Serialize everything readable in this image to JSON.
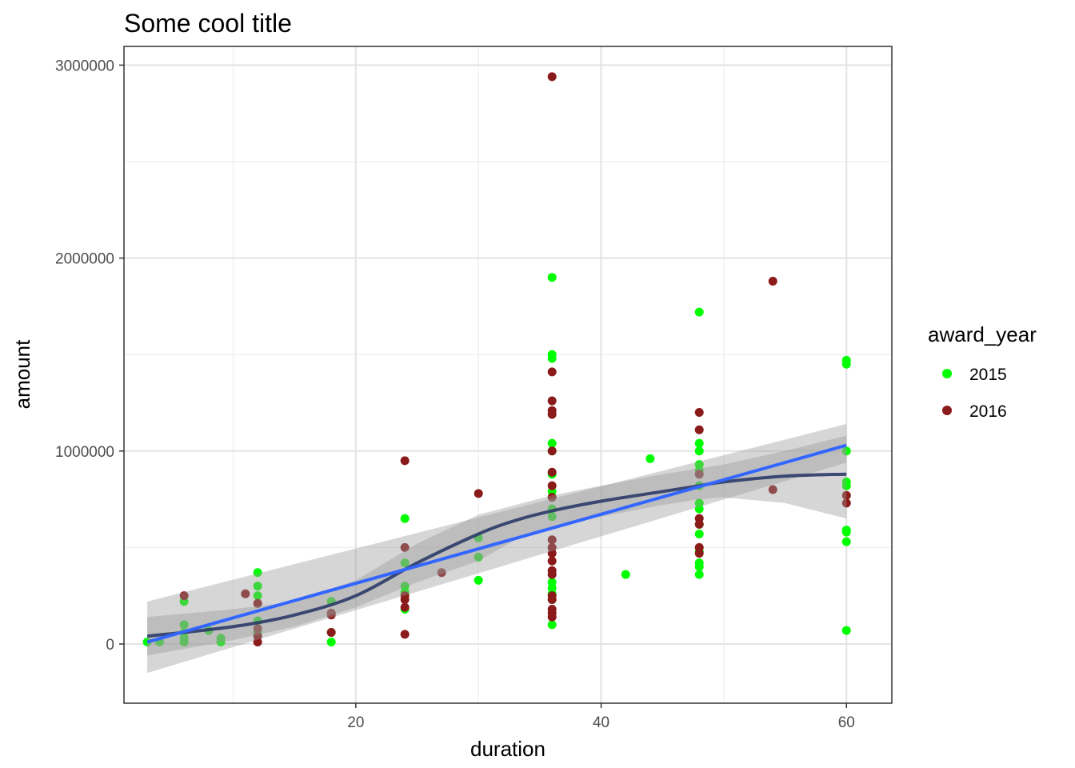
{
  "chart_data": {
    "type": "scatter",
    "title": "Some cool title",
    "xlabel": "duration",
    "ylabel": "amount",
    "xlim": [
      1.1,
      63.7
    ],
    "ylim": [
      -307000,
      3097000
    ],
    "x_ticks": [
      "20",
      "40",
      "60"
    ],
    "y_ticks": [
      "0",
      "1000000",
      "2000000",
      "3000000"
    ],
    "x_tick_values": [
      20,
      40,
      60
    ],
    "y_tick_values": [
      0,
      1000000,
      2000000,
      3000000
    ],
    "grid": true,
    "legend": {
      "title": "award_year",
      "position": "right"
    },
    "series": [
      {
        "name": "2015",
        "color": "#00ff00",
        "points": [
          [
            3,
            10000
          ],
          [
            4,
            10000
          ],
          [
            6,
            10000
          ],
          [
            6,
            30000
          ],
          [
            6,
            100000
          ],
          [
            6,
            220000
          ],
          [
            6,
            60000
          ],
          [
            8,
            70000
          ],
          [
            9,
            30000
          ],
          [
            9,
            10000
          ],
          [
            12,
            370000
          ],
          [
            12,
            300000
          ],
          [
            12,
            250000
          ],
          [
            12,
            120000
          ],
          [
            12,
            60000
          ],
          [
            18,
            10000
          ],
          [
            18,
            60000
          ],
          [
            18,
            220000
          ],
          [
            24,
            650000
          ],
          [
            24,
            420000
          ],
          [
            24,
            300000
          ],
          [
            24,
            270000
          ],
          [
            24,
            180000
          ],
          [
            30,
            550000
          ],
          [
            30,
            450000
          ],
          [
            30,
            330000
          ],
          [
            36,
            1900000
          ],
          [
            36,
            1500000
          ],
          [
            36,
            1480000
          ],
          [
            36,
            1040000
          ],
          [
            36,
            1000000
          ],
          [
            36,
            880000
          ],
          [
            36,
            790000
          ],
          [
            36,
            760000
          ],
          [
            36,
            700000
          ],
          [
            36,
            660000
          ],
          [
            36,
            320000
          ],
          [
            36,
            290000
          ],
          [
            36,
            260000
          ],
          [
            36,
            230000
          ],
          [
            36,
            100000
          ],
          [
            42,
            360000
          ],
          [
            44,
            960000
          ],
          [
            48,
            1720000
          ],
          [
            48,
            1040000
          ],
          [
            48,
            1000000
          ],
          [
            48,
            930000
          ],
          [
            48,
            900000
          ],
          [
            48,
            820000
          ],
          [
            48,
            730000
          ],
          [
            48,
            700000
          ],
          [
            48,
            620000
          ],
          [
            48,
            570000
          ],
          [
            48,
            480000
          ],
          [
            48,
            420000
          ],
          [
            48,
            400000
          ],
          [
            48,
            360000
          ],
          [
            60,
            1470000
          ],
          [
            60,
            1450000
          ],
          [
            60,
            1000000
          ],
          [
            60,
            840000
          ],
          [
            60,
            820000
          ],
          [
            60,
            590000
          ],
          [
            60,
            580000
          ],
          [
            60,
            530000
          ],
          [
            60,
            70000
          ]
        ]
      },
      {
        "name": "2016",
        "color": "#8b1a1a",
        "points": [
          [
            6,
            250000
          ],
          [
            11,
            260000
          ],
          [
            12,
            210000
          ],
          [
            12,
            80000
          ],
          [
            12,
            40000
          ],
          [
            12,
            10000
          ],
          [
            18,
            160000
          ],
          [
            18,
            150000
          ],
          [
            18,
            60000
          ],
          [
            24,
            950000
          ],
          [
            24,
            500000
          ],
          [
            24,
            250000
          ],
          [
            24,
            230000
          ],
          [
            24,
            190000
          ],
          [
            24,
            50000
          ],
          [
            27,
            370000
          ],
          [
            30,
            780000
          ],
          [
            36,
            2940000
          ],
          [
            36,
            1410000
          ],
          [
            36,
            1260000
          ],
          [
            36,
            1210000
          ],
          [
            36,
            1190000
          ],
          [
            36,
            1000000
          ],
          [
            36,
            890000
          ],
          [
            36,
            820000
          ],
          [
            36,
            760000
          ],
          [
            36,
            540000
          ],
          [
            36,
            500000
          ],
          [
            36,
            470000
          ],
          [
            36,
            430000
          ],
          [
            36,
            380000
          ],
          [
            36,
            360000
          ],
          [
            36,
            250000
          ],
          [
            36,
            230000
          ],
          [
            36,
            180000
          ],
          [
            36,
            160000
          ],
          [
            36,
            140000
          ],
          [
            48,
            1200000
          ],
          [
            48,
            1110000
          ],
          [
            48,
            880000
          ],
          [
            48,
            650000
          ],
          [
            48,
            620000
          ],
          [
            48,
            500000
          ],
          [
            48,
            470000
          ],
          [
            54,
            1880000
          ],
          [
            54,
            800000
          ],
          [
            60,
            770000
          ],
          [
            60,
            730000
          ]
        ]
      }
    ],
    "linear_fit": {
      "color": "#3366ff",
      "x": [
        3,
        60
      ],
      "y": [
        10000,
        1030000
      ],
      "band_lower": [
        -150000,
        940000
      ],
      "band_upper": [
        220000,
        1140000
      ]
    },
    "smooth_fit": {
      "color": "#2b3a67",
      "x": [
        3,
        10,
        15,
        20,
        25,
        30,
        33,
        36,
        40,
        45,
        48,
        50,
        55,
        60
      ],
      "y": [
        40000,
        90000,
        150000,
        250000,
        420000,
        570000,
        640000,
        690000,
        740000,
        790000,
        820000,
        840000,
        870000,
        880000
      ],
      "band_lower": [
        -60000,
        20000,
        90000,
        190000,
        320000,
        430000,
        540000,
        610000,
        660000,
        720000,
        750000,
        760000,
        730000,
        650000
      ],
      "band_upper": [
        140000,
        180000,
        220000,
        330000,
        520000,
        670000,
        720000,
        770000,
        820000,
        880000,
        910000,
        930000,
        1000000,
        1080000
      ]
    }
  }
}
